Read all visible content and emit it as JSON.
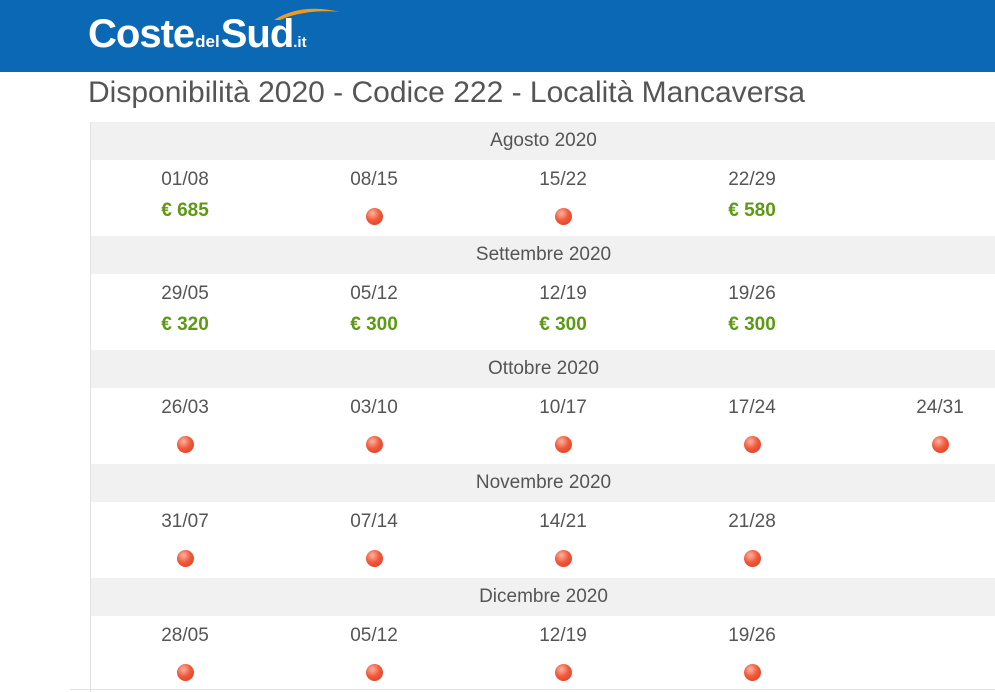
{
  "header": {
    "logo": {
      "part1": "Coste",
      "part2": "del",
      "part3": "Sud",
      "tld": ".it"
    },
    "background_color": "#0a68b4"
  },
  "page_title": "Disponibilità 2020 - Codice 222 - Località Mancaversa",
  "colors": {
    "available_price": "#5c9a14",
    "unavailable_dot": "#e94b2f",
    "month_header_bg": "#f1f1f1"
  },
  "months": [
    {
      "name": "Agosto 2020",
      "weeks": [
        {
          "date": "01/08",
          "status": "available",
          "price": "€ 685"
        },
        {
          "date": "08/15",
          "status": "unavailable"
        },
        {
          "date": "15/22",
          "status": "unavailable"
        },
        {
          "date": "22/29",
          "status": "available",
          "price": "€ 580"
        }
      ]
    },
    {
      "name": "Settembre 2020",
      "weeks": [
        {
          "date": "29/05",
          "status": "available",
          "price": "€ 320"
        },
        {
          "date": "05/12",
          "status": "available",
          "price": "€ 300"
        },
        {
          "date": "12/19",
          "status": "available",
          "price": "€ 300"
        },
        {
          "date": "19/26",
          "status": "available",
          "price": "€ 300"
        }
      ]
    },
    {
      "name": "Ottobre 2020",
      "weeks": [
        {
          "date": "26/03",
          "status": "unavailable"
        },
        {
          "date": "03/10",
          "status": "unavailable"
        },
        {
          "date": "10/17",
          "status": "unavailable"
        },
        {
          "date": "17/24",
          "status": "unavailable"
        },
        {
          "date": "24/31",
          "status": "unavailable"
        }
      ]
    },
    {
      "name": "Novembre 2020",
      "weeks": [
        {
          "date": "31/07",
          "status": "unavailable"
        },
        {
          "date": "07/14",
          "status": "unavailable"
        },
        {
          "date": "14/21",
          "status": "unavailable"
        },
        {
          "date": "21/28",
          "status": "unavailable"
        }
      ]
    },
    {
      "name": "Dicembre 2020",
      "weeks": [
        {
          "date": "28/05",
          "status": "unavailable"
        },
        {
          "date": "05/12",
          "status": "unavailable"
        },
        {
          "date": "12/19",
          "status": "unavailable"
        },
        {
          "date": "19/26",
          "status": "unavailable"
        }
      ]
    }
  ]
}
